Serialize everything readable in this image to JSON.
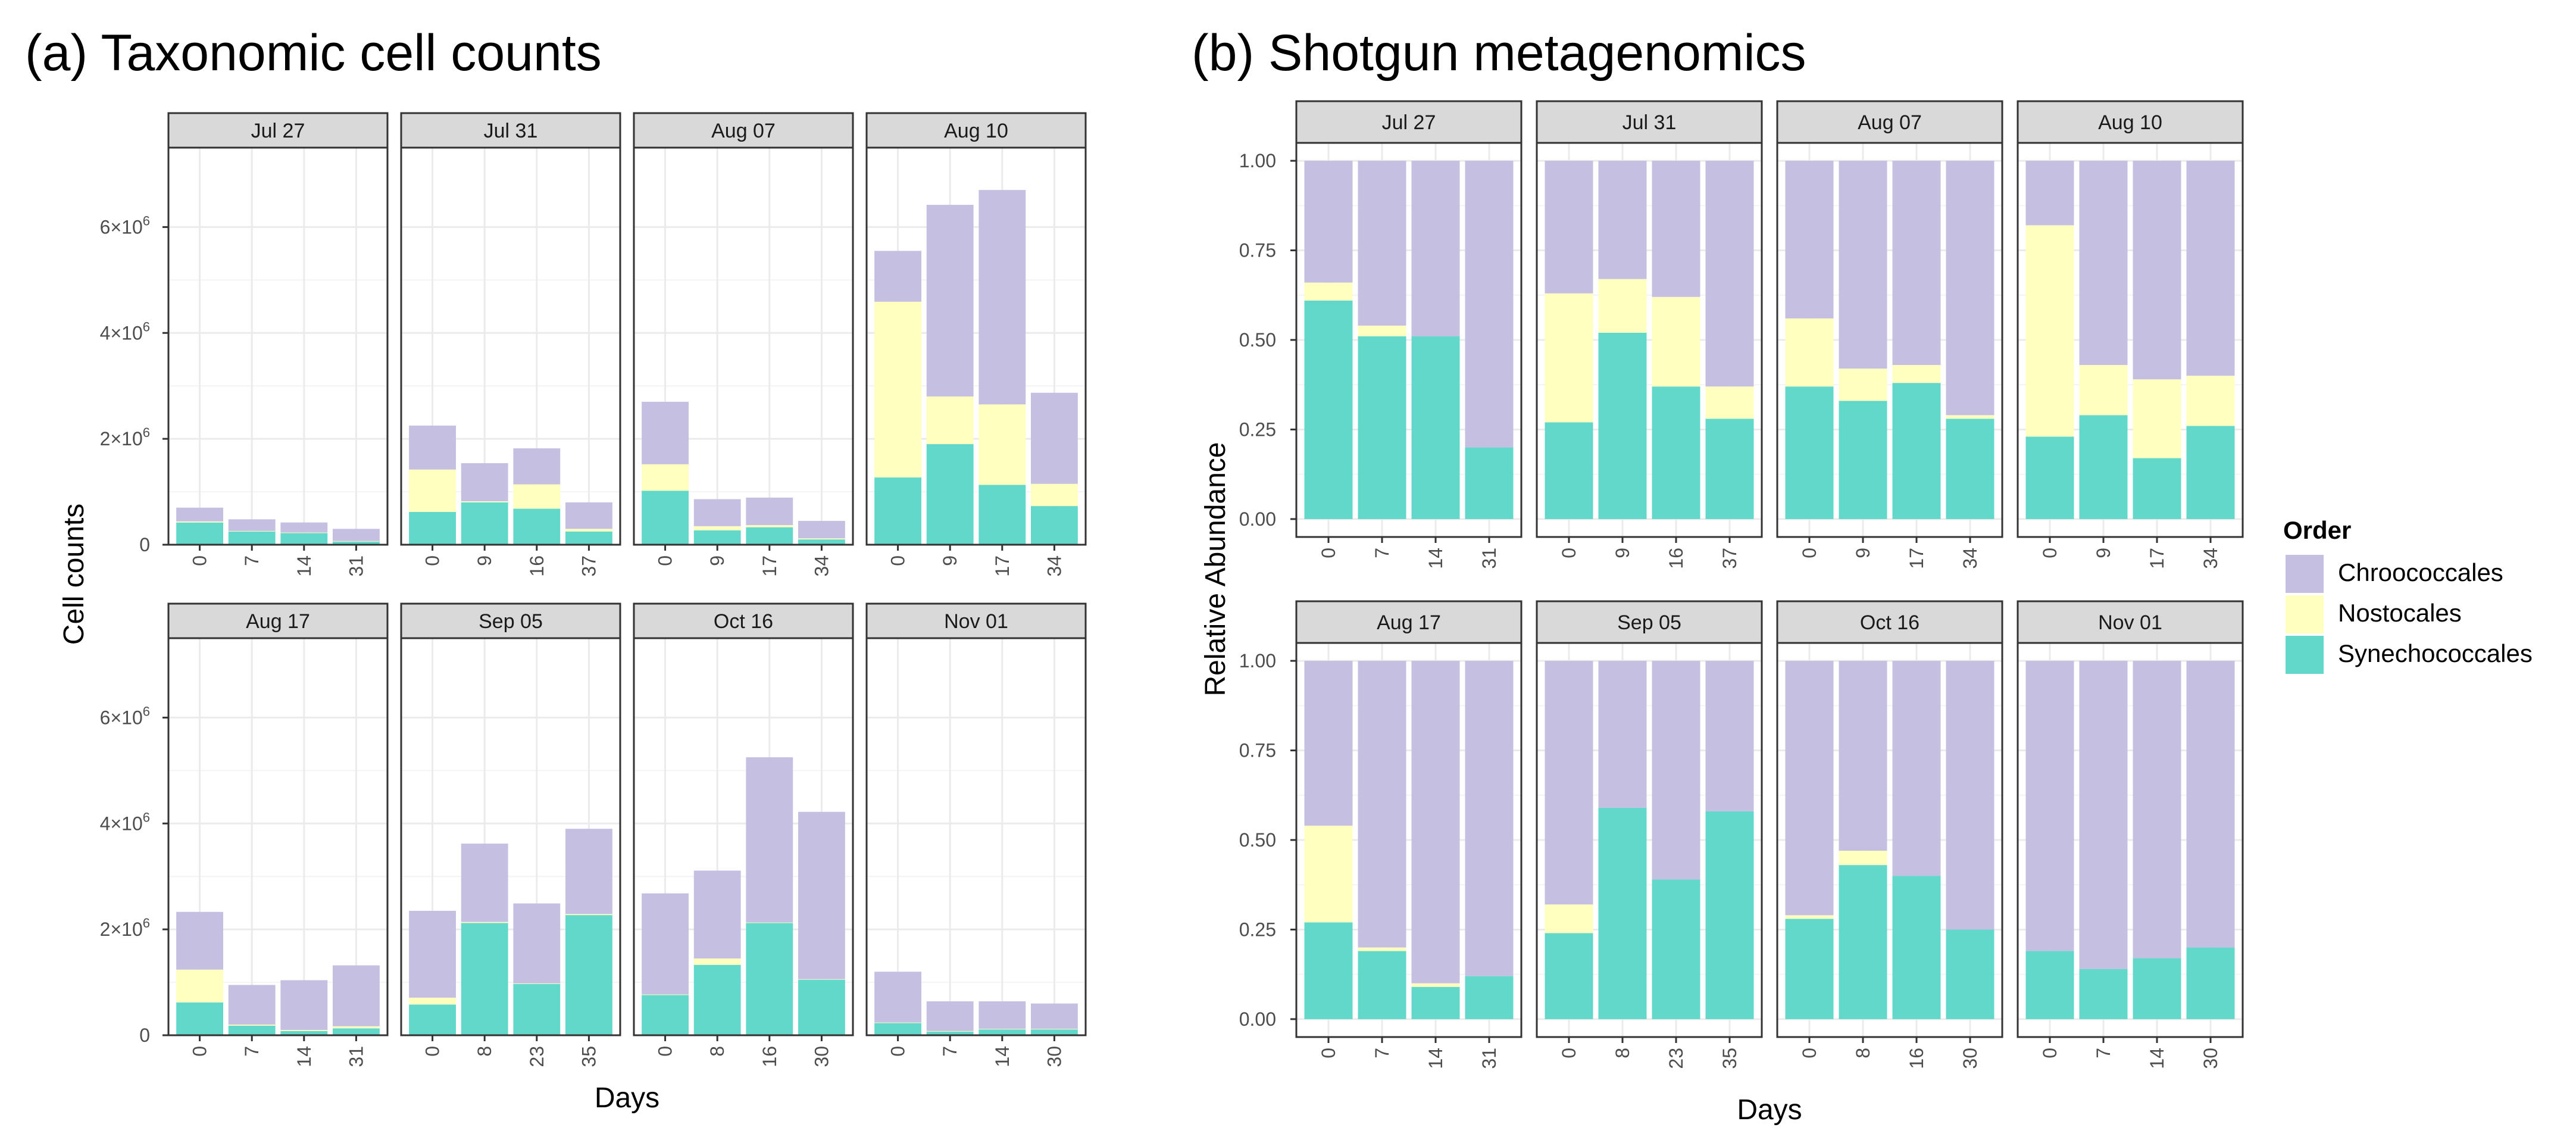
{
  "colors": {
    "Chroococcales": "#c5bfe2",
    "Nostocales": "#ffffc0",
    "Synechococcales": "#62d8cb",
    "strip_fill": "#d9d9d9",
    "frame": "#333333",
    "grid": "#ebebeb"
  },
  "legend": {
    "title": "Order",
    "items": [
      "Chroococcales",
      "Nostocales",
      "Synechococcales"
    ]
  },
  "chart_data": [
    {
      "type": "bar",
      "stacked": true,
      "title": "(a) Taxonomic cell counts",
      "xlabel": "Days",
      "ylabel": "Cell counts",
      "ylim": [
        0,
        7500000
      ],
      "yticks": [
        0,
        2000000,
        4000000,
        6000000
      ],
      "ytick_labels": [
        "0",
        "2×10",
        "4×10",
        "6×10"
      ],
      "ytick_sup": [
        "",
        "6",
        "6",
        "6"
      ],
      "order": [
        "Synechococcales",
        "Nostocales",
        "Chroococcales"
      ],
      "panels": [
        {
          "label": "Jul 27",
          "days": [
            "0",
            "7",
            "14",
            "31"
          ],
          "Synechococcales": [
            420000,
            250000,
            220000,
            60000
          ],
          "Nostocales": [
            20000,
            10000,
            10000,
            10000
          ],
          "Chroococcales": [
            260000,
            220000,
            190000,
            230000
          ]
        },
        {
          "label": "Jul 31",
          "days": [
            "0",
            "9",
            "16",
            "37"
          ],
          "Synechococcales": [
            620000,
            800000,
            680000,
            250000
          ],
          "Nostocales": [
            800000,
            20000,
            460000,
            50000
          ],
          "Chroococcales": [
            830000,
            720000,
            680000,
            500000
          ]
        },
        {
          "label": "Aug 07",
          "days": [
            "0",
            "9",
            "17",
            "34"
          ],
          "Synechococcales": [
            1020000,
            270000,
            330000,
            100000
          ],
          "Nostocales": [
            500000,
            80000,
            40000,
            20000
          ],
          "Chroococcales": [
            1180000,
            510000,
            520000,
            330000
          ]
        },
        {
          "label": "Aug 10",
          "days": [
            "0",
            "9",
            "17",
            "34"
          ],
          "Synechococcales": [
            1270000,
            1900000,
            1130000,
            730000
          ],
          "Nostocales": [
            3320000,
            900000,
            1520000,
            420000
          ],
          "Chroococcales": [
            960000,
            3620000,
            4050000,
            1720000
          ]
        },
        {
          "label": "Aug 17",
          "days": [
            "0",
            "7",
            "14",
            "31"
          ],
          "Synechococcales": [
            620000,
            180000,
            80000,
            130000
          ],
          "Nostocales": [
            620000,
            20000,
            20000,
            40000
          ],
          "Chroococcales": [
            1090000,
            750000,
            940000,
            1150000
          ]
        },
        {
          "label": "Sep 05",
          "days": [
            "0",
            "8",
            "23",
            "35"
          ],
          "Synechococcales": [
            580000,
            2120000,
            970000,
            2270000
          ],
          "Nostocales": [
            130000,
            20000,
            10000,
            20000
          ],
          "Chroococcales": [
            1640000,
            1480000,
            1510000,
            1610000
          ]
        },
        {
          "label": "Oct 16",
          "days": [
            "0",
            "8",
            "16",
            "30"
          ],
          "Synechococcales": [
            760000,
            1330000,
            2120000,
            1050000
          ],
          "Nostocales": [
            10000,
            120000,
            10000,
            10000
          ],
          "Chroococcales": [
            1910000,
            1660000,
            3120000,
            3160000
          ]
        },
        {
          "label": "Nov 01",
          "days": [
            "0",
            "7",
            "14",
            "30"
          ],
          "Synechococcales": [
            230000,
            70000,
            110000,
            110000
          ],
          "Nostocales": [
            10000,
            10000,
            10000,
            10000
          ],
          "Chroococcales": [
            960000,
            560000,
            520000,
            480000
          ]
        }
      ]
    },
    {
      "type": "bar",
      "stacked": true,
      "title": "(b) Shotgun metagenomics",
      "xlabel": "Days",
      "ylabel": "Relative Abundance",
      "ylim": [
        -0.05,
        1.05
      ],
      "yticks": [
        0,
        0.25,
        0.5,
        0.75,
        1
      ],
      "ytick_labels": [
        "0.00",
        "0.25",
        "0.50",
        "0.75",
        "1.00"
      ],
      "ytick_sup": [
        "",
        "",
        "",
        "",
        ""
      ],
      "order": [
        "Synechococcales",
        "Nostocales",
        "Chroococcales"
      ],
      "panels": [
        {
          "label": "Jul 27",
          "days": [
            "0",
            "7",
            "14",
            "31"
          ],
          "Synechococcales": [
            0.61,
            0.51,
            0.51,
            0.2
          ],
          "Nostocales": [
            0.05,
            0.03,
            0.0,
            0.0
          ],
          "Chroococcales": [
            0.34,
            0.46,
            0.49,
            0.8
          ]
        },
        {
          "label": "Jul 31",
          "days": [
            "0",
            "9",
            "16",
            "37"
          ],
          "Synechococcales": [
            0.27,
            0.52,
            0.37,
            0.28
          ],
          "Nostocales": [
            0.36,
            0.15,
            0.25,
            0.09
          ],
          "Chroococcales": [
            0.37,
            0.33,
            0.38,
            0.63
          ]
        },
        {
          "label": "Aug 07",
          "days": [
            "0",
            "9",
            "17",
            "34"
          ],
          "Synechococcales": [
            0.37,
            0.33,
            0.38,
            0.28
          ],
          "Nostocales": [
            0.19,
            0.09,
            0.05,
            0.01
          ],
          "Chroococcales": [
            0.44,
            0.58,
            0.57,
            0.71
          ]
        },
        {
          "label": "Aug 10",
          "days": [
            "0",
            "9",
            "17",
            "34"
          ],
          "Synechococcales": [
            0.23,
            0.29,
            0.17,
            0.26
          ],
          "Nostocales": [
            0.59,
            0.14,
            0.22,
            0.14
          ],
          "Chroococcales": [
            0.18,
            0.57,
            0.61,
            0.6
          ]
        },
        {
          "label": "Aug 17",
          "days": [
            "0",
            "7",
            "14",
            "31"
          ],
          "Synechococcales": [
            0.27,
            0.19,
            0.09,
            0.12
          ],
          "Nostocales": [
            0.27,
            0.01,
            0.01,
            0.0
          ],
          "Chroococcales": [
            0.46,
            0.8,
            0.9,
            0.88
          ]
        },
        {
          "label": "Sep 05",
          "days": [
            "0",
            "8",
            "23",
            "35"
          ],
          "Synechococcales": [
            0.24,
            0.59,
            0.39,
            0.58
          ],
          "Nostocales": [
            0.08,
            0.0,
            0.0,
            0.0
          ],
          "Chroococcales": [
            0.68,
            0.41,
            0.61,
            0.42
          ]
        },
        {
          "label": "Oct 16",
          "days": [
            "0",
            "8",
            "16",
            "30"
          ],
          "Synechococcales": [
            0.28,
            0.43,
            0.4,
            0.25
          ],
          "Nostocales": [
            0.01,
            0.04,
            0.0,
            0.0
          ],
          "Chroococcales": [
            0.71,
            0.53,
            0.6,
            0.75
          ]
        },
        {
          "label": "Nov 01",
          "days": [
            "0",
            "7",
            "14",
            "30"
          ],
          "Synechococcales": [
            0.19,
            0.14,
            0.17,
            0.2
          ],
          "Nostocales": [
            0.0,
            0.0,
            0.0,
            0.0
          ],
          "Chroococcales": [
            0.81,
            0.86,
            0.83,
            0.8
          ]
        }
      ]
    }
  ]
}
